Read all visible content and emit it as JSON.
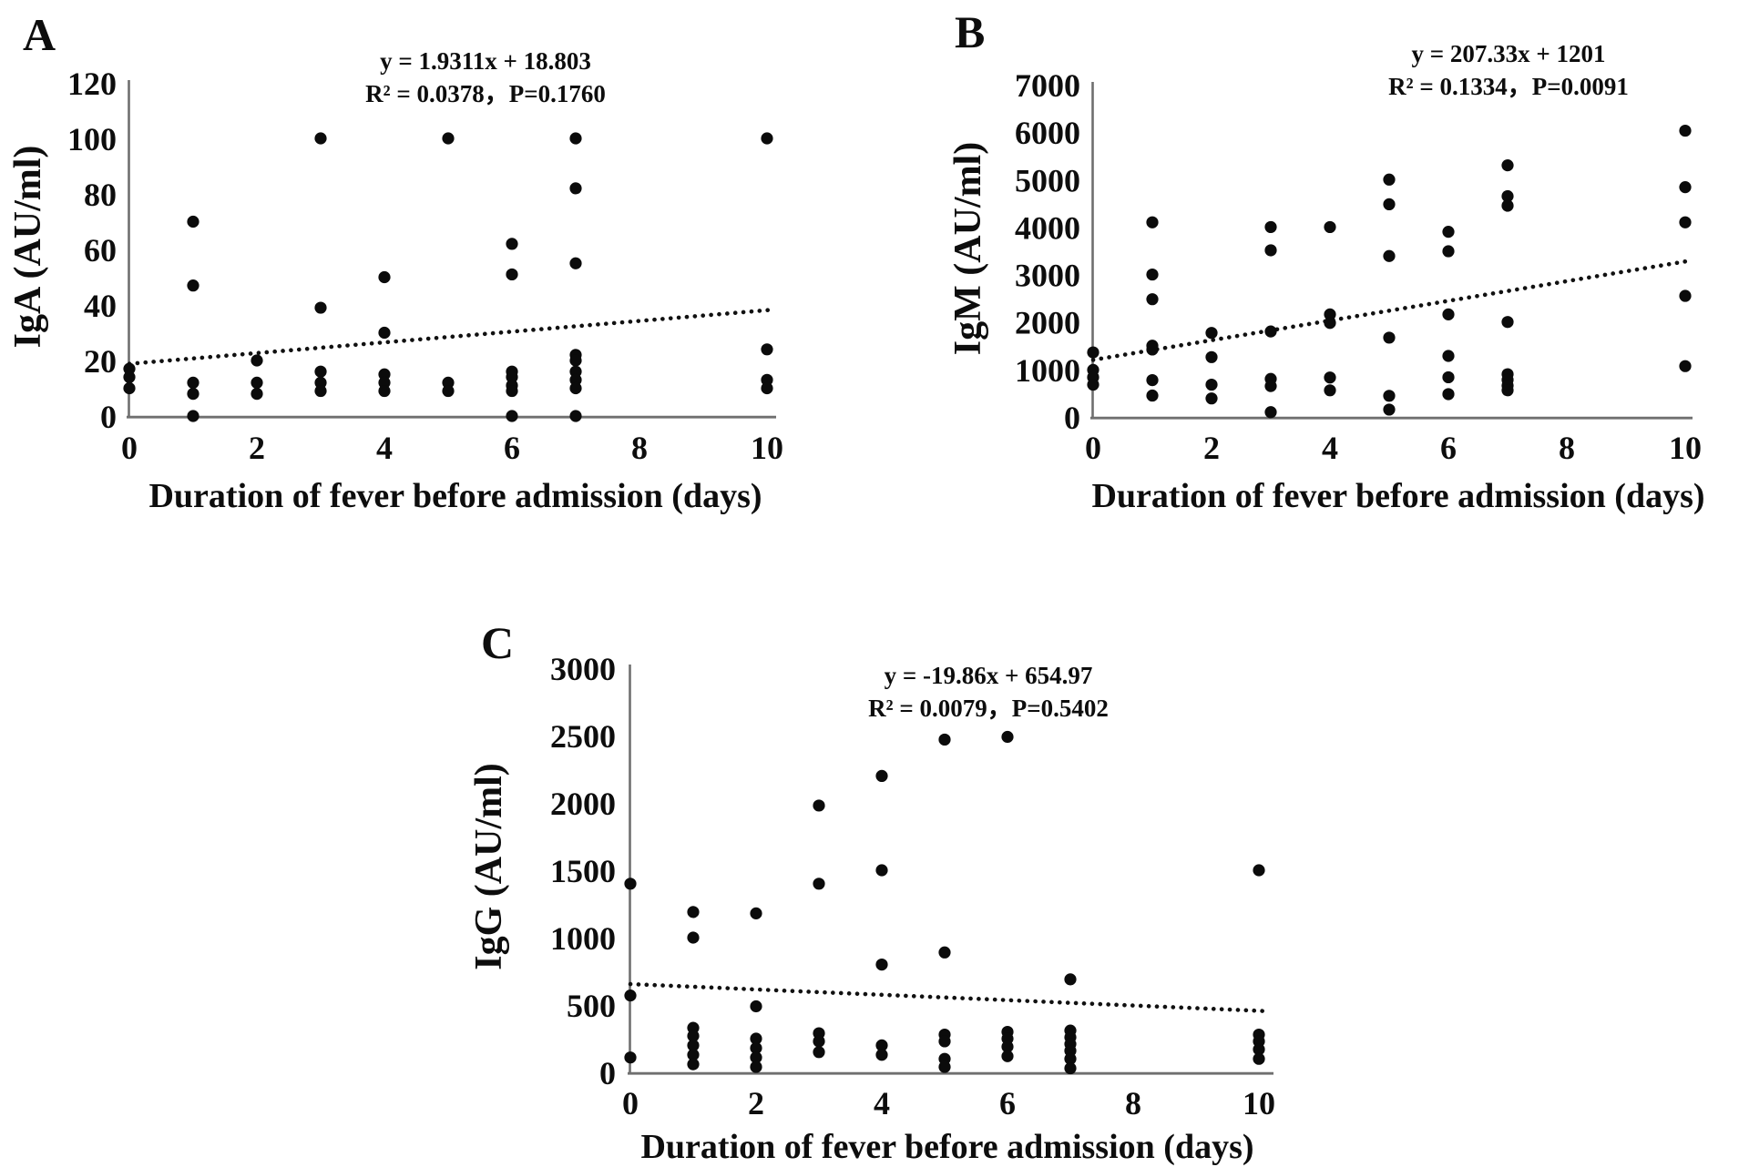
{
  "figure_title": "",
  "chart_data": [
    {
      "type": "scatter",
      "panel_label": "A",
      "equation": "y = 1.9311x + 18.803",
      "stats": "R² = 0.0378，P=0.1760",
      "xlabel": "Duration of fever before admission (days)",
      "ylabel": "IgA (AU/ml)",
      "xlim": [
        0,
        10.2
      ],
      "ylim": [
        0,
        120
      ],
      "x_ticks": [
        0,
        2,
        4,
        6,
        8,
        10
      ],
      "y_ticks": [
        0,
        20,
        40,
        60,
        80,
        100,
        120
      ],
      "grid": false,
      "legend": "none",
      "trendline": {
        "style": "dotted",
        "slope": 1.9311,
        "intercept": 18.803,
        "r2": 0.0378,
        "p": 0.176
      },
      "points": [
        [
          0,
          17
        ],
        [
          0,
          14
        ],
        [
          0,
          10
        ],
        [
          1,
          70
        ],
        [
          1,
          47
        ],
        [
          1,
          12
        ],
        [
          1,
          8
        ],
        [
          1,
          0
        ],
        [
          2,
          20
        ],
        [
          2,
          12
        ],
        [
          2,
          8
        ],
        [
          3,
          100
        ],
        [
          3,
          39
        ],
        [
          3,
          16
        ],
        [
          3,
          12
        ],
        [
          3,
          9
        ],
        [
          4,
          50
        ],
        [
          4,
          30
        ],
        [
          4,
          15
        ],
        [
          4,
          12
        ],
        [
          4,
          9
        ],
        [
          5,
          100
        ],
        [
          5,
          12
        ],
        [
          5,
          9
        ],
        [
          6,
          62
        ],
        [
          6,
          51
        ],
        [
          6,
          16
        ],
        [
          6,
          14
        ],
        [
          6,
          11
        ],
        [
          6,
          9
        ],
        [
          6,
          0
        ],
        [
          7,
          100
        ],
        [
          7,
          82
        ],
        [
          7,
          55
        ],
        [
          7,
          22
        ],
        [
          7,
          20
        ],
        [
          7,
          16
        ],
        [
          7,
          13
        ],
        [
          7,
          10
        ],
        [
          7,
          0
        ],
        [
          10,
          100
        ],
        [
          10,
          24
        ],
        [
          10,
          13
        ],
        [
          10,
          10
        ]
      ]
    },
    {
      "type": "scatter",
      "panel_label": "B",
      "equation": "y = 207.33x + 1201",
      "stats": "R² = 0.1334，P=0.0091",
      "xlabel": "Duration of fever before admission (days)",
      "ylabel": "IgM (AU/ml)",
      "xlim": [
        0,
        10.2
      ],
      "ylim": [
        0,
        7000
      ],
      "x_ticks": [
        0,
        2,
        4,
        6,
        8,
        10
      ],
      "y_ticks": [
        0,
        1000,
        2000,
        3000,
        4000,
        5000,
        6000,
        7000
      ],
      "grid": false,
      "legend": "none",
      "trendline": {
        "style": "dotted",
        "slope": 207.33,
        "intercept": 1201,
        "r2": 0.1334,
        "p": 0.0091
      },
      "points": [
        [
          0,
          1360
        ],
        [
          0,
          990
        ],
        [
          0,
          835
        ],
        [
          0,
          680
        ],
        [
          1,
          4100
        ],
        [
          1,
          3000
        ],
        [
          1,
          2480
        ],
        [
          1,
          1500
        ],
        [
          1,
          1420
        ],
        [
          1,
          775
        ],
        [
          1,
          450
        ],
        [
          2,
          1770
        ],
        [
          2,
          1260
        ],
        [
          2,
          680
        ],
        [
          2,
          390
        ],
        [
          3,
          4000
        ],
        [
          3,
          3510
        ],
        [
          3,
          1800
        ],
        [
          3,
          800
        ],
        [
          3,
          650
        ],
        [
          3,
          100
        ],
        [
          4,
          4000
        ],
        [
          4,
          2160
        ],
        [
          4,
          1980
        ],
        [
          4,
          830
        ],
        [
          4,
          560
        ],
        [
          5,
          5000
        ],
        [
          5,
          4480
        ],
        [
          5,
          3390
        ],
        [
          5,
          1670
        ],
        [
          5,
          445
        ],
        [
          5,
          155
        ],
        [
          6,
          3900
        ],
        [
          6,
          3490
        ],
        [
          6,
          2160
        ],
        [
          6,
          1285
        ],
        [
          6,
          835
        ],
        [
          6,
          480
        ],
        [
          7,
          5300
        ],
        [
          7,
          4650
        ],
        [
          7,
          4450
        ],
        [
          7,
          2000
        ],
        [
          7,
          900
        ],
        [
          7,
          780
        ],
        [
          7,
          660
        ],
        [
          7,
          560
        ],
        [
          10,
          6030
        ],
        [
          10,
          4840
        ],
        [
          10,
          4100
        ],
        [
          10,
          2550
        ],
        [
          10,
          1070
        ]
      ]
    },
    {
      "type": "scatter",
      "panel_label": "C",
      "equation": "y = -19.86x + 654.97",
      "stats": "R² = 0.0079，P=0.5402",
      "xlabel": "Duration of fever before admission (days)",
      "ylabel": "IgG (AU/ml)",
      "xlim": [
        0,
        10.2
      ],
      "ylim": [
        0,
        3000
      ],
      "x_ticks": [
        0,
        2,
        4,
        6,
        8,
        10
      ],
      "y_ticks": [
        0,
        500,
        1000,
        1500,
        2000,
        2500,
        3000
      ],
      "grid": false,
      "legend": "none",
      "trendline": {
        "style": "dotted",
        "slope": -19.86,
        "intercept": 654.97,
        "r2": 0.0079,
        "p": 0.5402
      },
      "points": [
        [
          0,
          1400
        ],
        [
          0,
          570
        ],
        [
          0,
          110
        ],
        [
          1,
          1190
        ],
        [
          1,
          1000
        ],
        [
          1,
          330
        ],
        [
          1,
          270
        ],
        [
          1,
          200
        ],
        [
          1,
          130
        ],
        [
          1,
          60
        ],
        [
          2,
          1180
        ],
        [
          2,
          490
        ],
        [
          2,
          250
        ],
        [
          2,
          180
        ],
        [
          2,
          110
        ],
        [
          2,
          40
        ],
        [
          3,
          1980
        ],
        [
          3,
          1400
        ],
        [
          3,
          290
        ],
        [
          3,
          230
        ],
        [
          3,
          150
        ],
        [
          4,
          2200
        ],
        [
          4,
          1500
        ],
        [
          4,
          800
        ],
        [
          4,
          200
        ],
        [
          4,
          130
        ],
        [
          5,
          2470
        ],
        [
          5,
          890
        ],
        [
          5,
          280
        ],
        [
          5,
          230
        ],
        [
          5,
          100
        ],
        [
          5,
          40
        ],
        [
          6,
          2490
        ],
        [
          6,
          300
        ],
        [
          6,
          250
        ],
        [
          6,
          190
        ],
        [
          6,
          120
        ],
        [
          7,
          690
        ],
        [
          7,
          310
        ],
        [
          7,
          260
        ],
        [
          7,
          210
        ],
        [
          7,
          160
        ],
        [
          7,
          100
        ],
        [
          7,
          30
        ],
        [
          10,
          1500
        ],
        [
          10,
          280
        ],
        [
          10,
          230
        ],
        [
          10,
          170
        ],
        [
          10,
          100
        ]
      ]
    }
  ],
  "colors": {
    "point": "#0b0b0b",
    "trendline": "#111111",
    "axis": "#6f6f6f",
    "text": "#0d0d0d",
    "background": "#ffffff"
  }
}
